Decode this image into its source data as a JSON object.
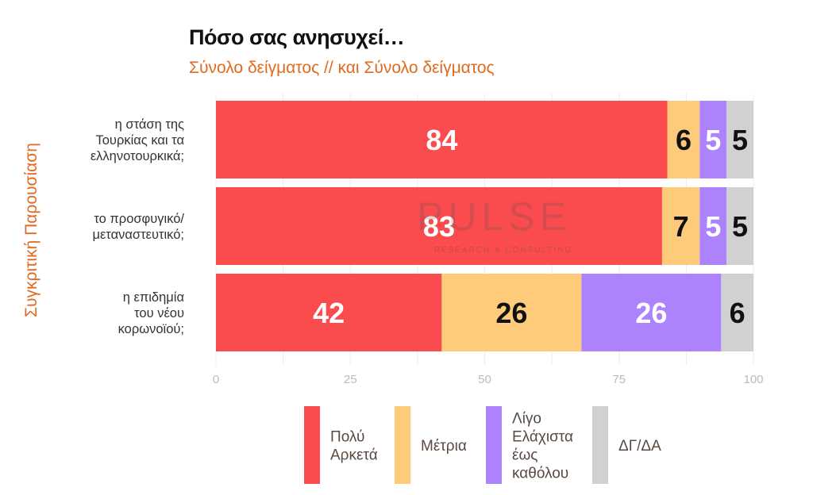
{
  "chart_data": {
    "type": "bar",
    "orientation": "horizontal",
    "stacked": true,
    "title": "Πόσο σας ανησυχεί…",
    "subtitle": "Σύνολο δείγματος // και Σύνολο δείγματος",
    "ylabel": "Συγκριτική  Παρουσίαση",
    "xlabel": "",
    "xlim": [
      0,
      100
    ],
    "xticks": [
      "0",
      "25",
      "50",
      "75",
      "100"
    ],
    "grid": true,
    "legend_position": "bottom",
    "categories": [
      [
        "η στάση της",
        "Τουρκίας και τα",
        "ελληνοτουρκικά;"
      ],
      [
        "το προσφυγικό/",
        "μεταναστευτικό;"
      ],
      [
        "η επιδημία",
        "του νέου",
        "κορωνοϊού;"
      ]
    ],
    "series": [
      {
        "name": "Πολύ Αρκετά",
        "legend_lines": [
          "Πολύ",
          "Αρκετά"
        ],
        "color": "#fa4b4f",
        "label_color": "#ffffff",
        "values": [
          84,
          83,
          42
        ]
      },
      {
        "name": "Μέτρια",
        "legend_lines": [
          "Μέτρια"
        ],
        "color": "#fdcb7a",
        "label_color": "#111111",
        "values": [
          6,
          7,
          26
        ]
      },
      {
        "name": "Λίγο Ελάχιστα έως καθόλου",
        "legend_lines": [
          "Λίγο",
          "Ελάχιστα",
          "έως",
          "καθόλου"
        ],
        "color": "#ac83fd",
        "label_color": "#ffffff",
        "values": [
          5,
          5,
          26
        ]
      },
      {
        "name": "ΔΓ/ΔΑ",
        "legend_lines": [
          "ΔΓ/ΔΑ"
        ],
        "color": "#d1d1d1",
        "label_color": "#111111",
        "values": [
          5,
          5,
          6
        ]
      }
    ]
  },
  "watermark": {
    "logo": "PULSE",
    "tagline": "RESEARCH & CONSULTING"
  }
}
